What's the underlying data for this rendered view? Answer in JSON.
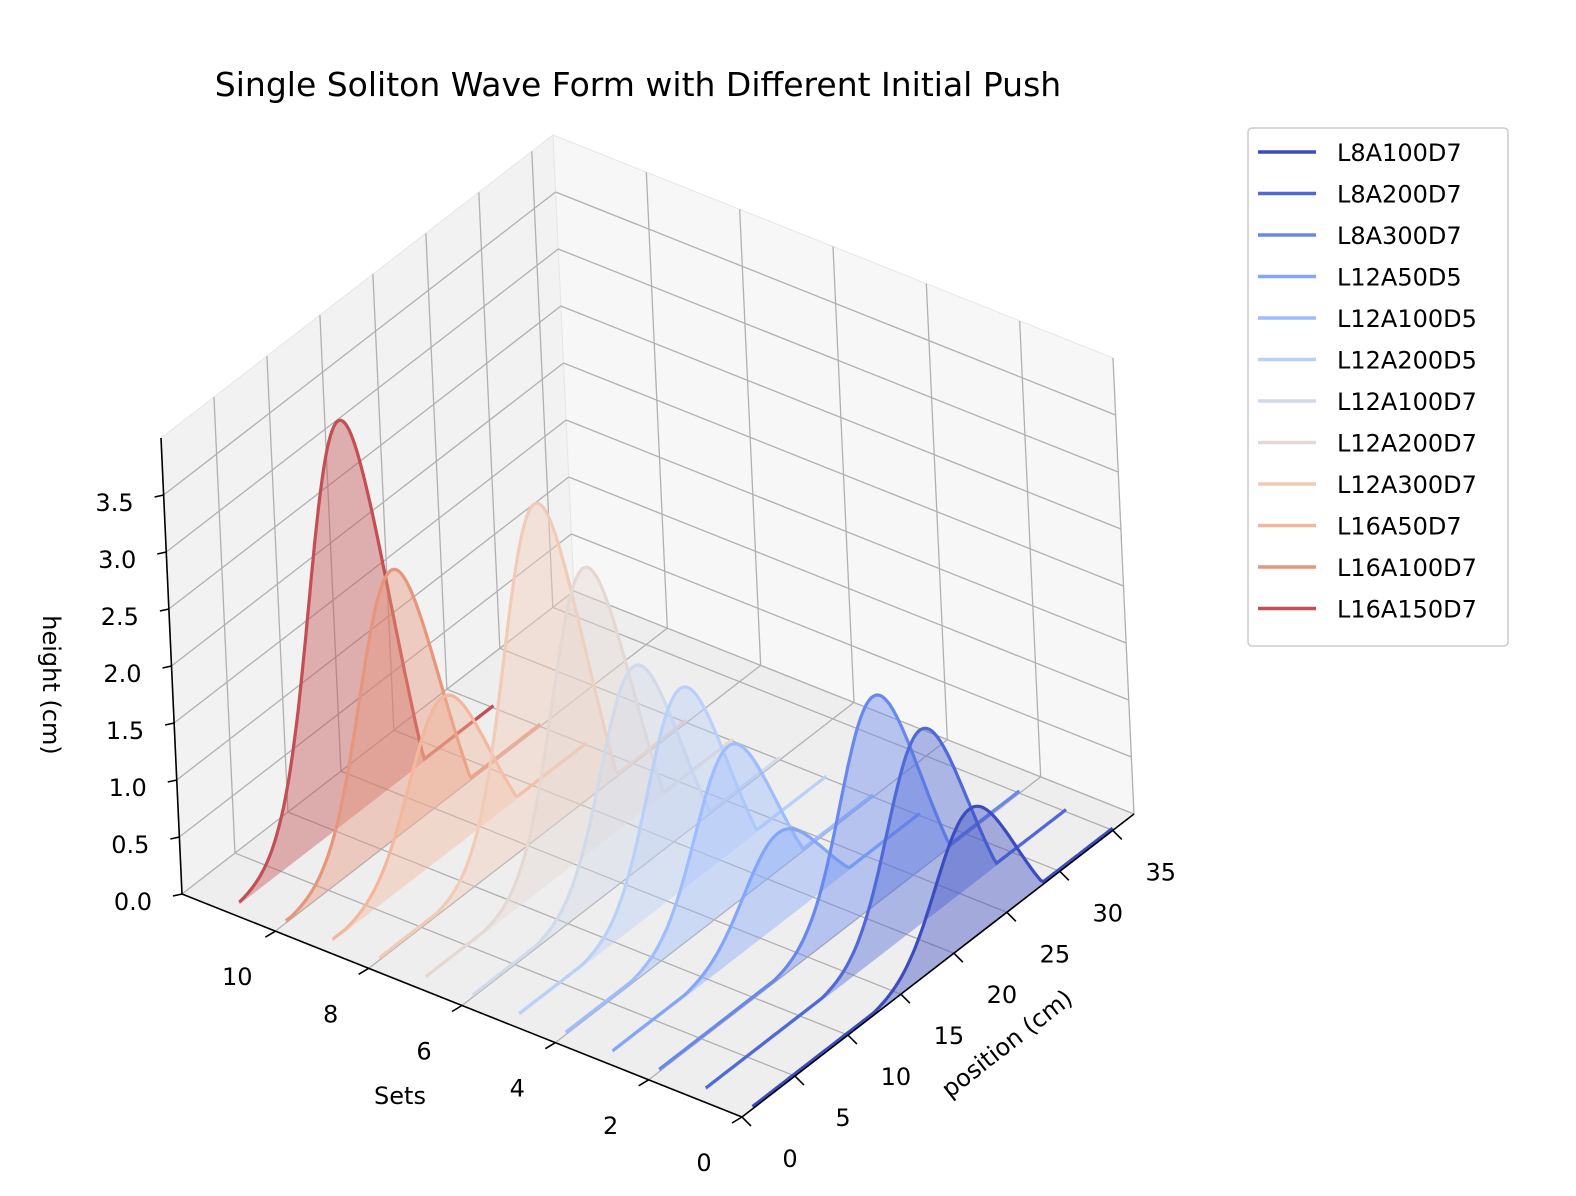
{
  "chart_data": {
    "type": "line",
    "title": "Single Soliton Wave Form with Different Initial Push",
    "xlabel": "position (cm)",
    "ylabel": "Sets",
    "zlabel": "height (cm)",
    "xlim": [
      0,
      37
    ],
    "ylim": [
      0,
      12
    ],
    "zlim": [
      0,
      4
    ],
    "x_ticks": [
      "0",
      "5",
      "10",
      "15",
      "20",
      "25",
      "30",
      "35"
    ],
    "y_ticks": [
      "0",
      "2",
      "4",
      "6",
      "8",
      "10"
    ],
    "z_ticks": [
      "0.0",
      "0.5",
      "1.0",
      "1.5",
      "2.0",
      "2.5",
      "3.0",
      "3.5"
    ],
    "legend_position": "outside-right",
    "grid": true,
    "series": [
      {
        "name": "L8A100D7",
        "set": 0,
        "peak_height": 1.12,
        "peak_position": 22,
        "color": "#3b4cc0"
      },
      {
        "name": "L8A200D7",
        "set": 1,
        "peak_height": 1.65,
        "peak_position": 22,
        "color": "#4f69d9"
      },
      {
        "name": "L8A300D7",
        "set": 2,
        "peak_height": 1.78,
        "peak_position": 22,
        "color": "#6788ee"
      },
      {
        "name": "L12A50D5",
        "set": 3,
        "peak_height": 0.78,
        "peak_position": 17,
        "color": "#82a6fb"
      },
      {
        "name": "L12A100D5",
        "set": 4,
        "peak_height": 1.38,
        "peak_position": 17,
        "color": "#9dbdff"
      },
      {
        "name": "L12A200D5",
        "set": 5,
        "peak_height": 1.72,
        "peak_position": 17,
        "color": "#b9d0f9"
      },
      {
        "name": "L12A100D7",
        "set": 6,
        "peak_height": 1.75,
        "peak_position": 17,
        "color": "#d1dae9"
      },
      {
        "name": "L12A200D7",
        "set": 7,
        "peak_height": 2.45,
        "peak_position": 17,
        "color": "#e4d9d2"
      },
      {
        "name": "L12A300D7",
        "set": 8,
        "peak_height": 2.85,
        "peak_position": 17,
        "color": "#f2cbb7"
      },
      {
        "name": "L16A50D7",
        "set": 9,
        "peak_height": 1.35,
        "peak_position": 12,
        "color": "#f4b79b"
      },
      {
        "name": "L16A100D7",
        "set": 10,
        "peak_height": 2.3,
        "peak_position": 12,
        "color": "#e7967c"
      },
      {
        "name": "L16A150D7",
        "set": 11,
        "peak_height": 3.45,
        "peak_position": 12,
        "color": "#c44e52"
      }
    ]
  }
}
